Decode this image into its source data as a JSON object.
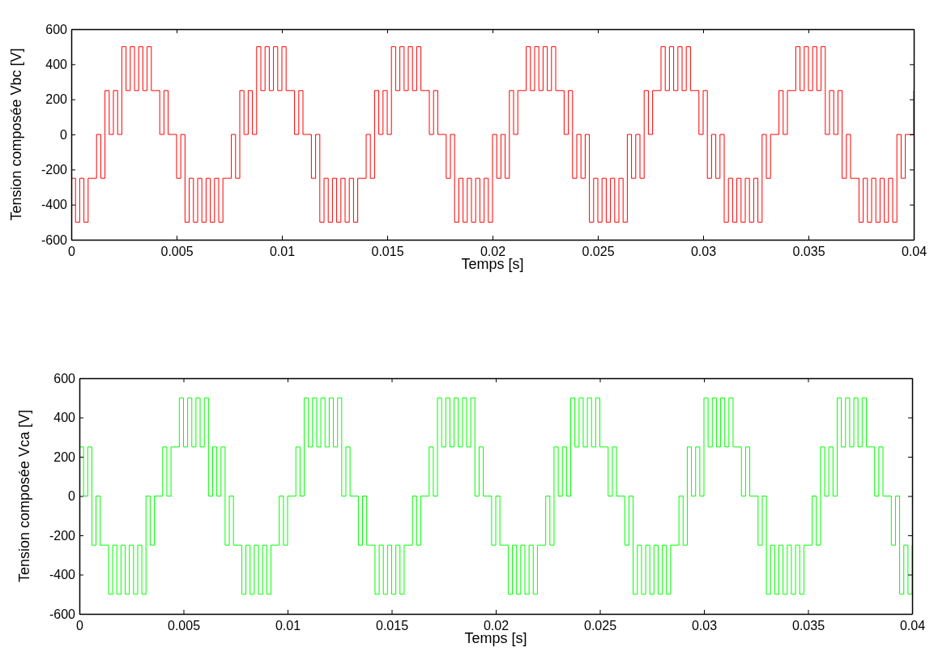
{
  "chart_data": [
    {
      "type": "step",
      "xlabel": "Temps [s]",
      "ylabel": "Tension composée Vbc [V]",
      "xlim": [
        0,
        0.04
      ],
      "xticks": [
        0,
        0.005,
        0.01,
        0.015,
        0.02,
        0.025,
        0.03,
        0.035,
        0.04
      ],
      "ylim": [
        -600,
        600
      ],
      "yticks": [
        -600,
        -400,
        -200,
        0,
        200,
        400,
        600
      ],
      "x": [
        0,
        0.0002,
        0.0004,
        0.0006,
        0.0008,
        0.001,
        0.0012,
        0.0014,
        0.0016,
        0.0018,
        0.002,
        0.0022,
        0.0024,
        0.0026,
        0.0028,
        0.003,
        0.0032,
        0.0034,
        0.0036,
        0.0038,
        0.004,
        0.0042,
        0.0044,
        0.0046,
        0.0048,
        0.005,
        0.0052,
        0.0054,
        0.0056,
        0.0058,
        0.006,
        0.0062,
        0.0064,
        0.0066,
        0.0068,
        0.007,
        0.0072,
        0.0074,
        0.0076,
        0.0078,
        0.008,
        0.0082,
        0.0084,
        0.0086,
        0.0088,
        0.009,
        0.0092,
        0.0094,
        0.0096,
        0.0098,
        0.01,
        0.0102,
        0.0104,
        0.0106,
        0.0108,
        0.011,
        0.0112,
        0.0114,
        0.0116,
        0.0118,
        0.012,
        0.0122,
        0.0124,
        0.0126,
        0.0128,
        0.013,
        0.0132,
        0.0134,
        0.0136,
        0.0138,
        0.014,
        0.0142,
        0.0144,
        0.0146,
        0.0148,
        0.015,
        0.0152,
        0.0154,
        0.0156,
        0.0158,
        0.016,
        0.0162,
        0.0164,
        0.0166,
        0.0168,
        0.017,
        0.0172,
        0.0174,
        0.0176,
        0.0178,
        0.018,
        0.0182,
        0.0184,
        0.0186,
        0.0188,
        0.019,
        0.0192,
        0.0194,
        0.0196,
        0.0198,
        0.02,
        0.0202,
        0.0204,
        0.0206,
        0.0208,
        0.021,
        0.0212,
        0.0214,
        0.0216,
        0.0218,
        0.022,
        0.0222,
        0.0224,
        0.0226,
        0.0228,
        0.023,
        0.0232,
        0.0234,
        0.0236,
        0.0238,
        0.024,
        0.0242,
        0.0244,
        0.0246,
        0.0248,
        0.025,
        0.0252,
        0.0254,
        0.0256,
        0.0258,
        0.026,
        0.0262,
        0.0264,
        0.0266,
        0.0268,
        0.027,
        0.0272,
        0.0274,
        0.0276,
        0.0278,
        0.028,
        0.0282,
        0.0284,
        0.0286,
        0.0288,
        0.029,
        0.0292,
        0.0294,
        0.0296,
        0.0298,
        0.03,
        0.0302,
        0.0304,
        0.0306,
        0.0308,
        0.031,
        0.0312,
        0.0314,
        0.0316,
        0.0318,
        0.032,
        0.0322,
        0.0324,
        0.0326,
        0.0328,
        0.033,
        0.0332,
        0.0334,
        0.0336,
        0.0338,
        0.034,
        0.0342,
        0.0344,
        0.0346,
        0.0348,
        0.035,
        0.0352,
        0.0354,
        0.0356,
        0.0358,
        0.036,
        0.0362,
        0.0364,
        0.0366,
        0.0368,
        0.037,
        0.0372,
        0.0374,
        0.0376,
        0.0378,
        0.038,
        0.0382,
        0.0384,
        0.0386,
        0.0388,
        0.039,
        0.0392,
        0.0394,
        0.0396,
        0.0398,
        0.04
      ],
      "series": [
        {
          "color": "#ff0000",
          "values": [
            -250,
            -500,
            -250,
            -500,
            -250,
            -250,
            0,
            -250,
            250,
            0,
            250,
            0,
            500,
            250,
            500,
            250,
            500,
            250,
            500,
            250,
            250,
            0,
            250,
            0,
            0,
            -250,
            0,
            -500,
            -250,
            -500,
            -250,
            -500,
            -250,
            -500,
            -250,
            -500,
            -250,
            -250,
            0,
            -250,
            250,
            0,
            250,
            0,
            500,
            250,
            500,
            250,
            500,
            250,
            500,
            250,
            250,
            0,
            250,
            0,
            0,
            -250,
            0,
            -500,
            -250,
            -500,
            -250,
            -500,
            -250,
            -500,
            -250,
            -500,
            -250,
            -250,
            0,
            -250,
            250,
            0,
            250,
            0,
            500,
            250,
            500,
            250,
            500,
            250,
            500,
            250,
            250,
            0,
            250,
            0,
            0,
            -250,
            0,
            -500,
            -250,
            -500,
            -250,
            -500,
            -250,
            -500,
            -250,
            -500,
            0,
            -250,
            0,
            -250,
            250,
            0,
            250,
            250,
            500,
            250,
            500,
            250,
            500,
            250,
            500,
            250,
            250,
            0,
            250,
            -250,
            0,
            -250,
            0,
            -500,
            -250,
            -500,
            -250,
            -500,
            -250,
            -500,
            -250,
            -500,
            0,
            -250,
            0,
            -250,
            250,
            0,
            250,
            250,
            500,
            250,
            500,
            250,
            500,
            250,
            500,
            250,
            250,
            0,
            250,
            -250,
            0,
            -250,
            0,
            -500,
            -250,
            -500,
            -250,
            -500,
            -250,
            -500,
            -250,
            -500,
            0,
            -250,
            0,
            0,
            250,
            0,
            250,
            250,
            500,
            250,
            500,
            250,
            500,
            250,
            500,
            0,
            250,
            0,
            250,
            -250,
            0,
            -250,
            -250,
            -500,
            -250,
            -500,
            -250,
            -500,
            -250,
            -500,
            -250,
            -500,
            0,
            -250,
            0,
            0,
            250
          ]
        }
      ]
    },
    {
      "type": "step",
      "xlabel": "Temps [s]",
      "ylabel": "Tension composée Vca [V]",
      "xlim": [
        0,
        0.04
      ],
      "xticks": [
        0,
        0.005,
        0.01,
        0.015,
        0.02,
        0.025,
        0.03,
        0.035,
        0.04
      ],
      "ylim": [
        -600,
        600
      ],
      "yticks": [
        -600,
        -400,
        -200,
        0,
        200,
        400,
        600
      ],
      "x": [
        0,
        0.0002,
        0.0004,
        0.0006,
        0.0008,
        0.001,
        0.0012,
        0.0014,
        0.0016,
        0.0018,
        0.002,
        0.0022,
        0.0024,
        0.0026,
        0.0028,
        0.003,
        0.0032,
        0.0034,
        0.0036,
        0.0038,
        0.004,
        0.0042,
        0.0044,
        0.0046,
        0.0048,
        0.005,
        0.0052,
        0.0054,
        0.0056,
        0.0058,
        0.006,
        0.0062,
        0.0064,
        0.0066,
        0.0068,
        0.007,
        0.0072,
        0.0074,
        0.0076,
        0.0078,
        0.008,
        0.0082,
        0.0084,
        0.0086,
        0.0088,
        0.009,
        0.0092,
        0.0094,
        0.0096,
        0.0098,
        0.01,
        0.0102,
        0.0104,
        0.0106,
        0.0108,
        0.011,
        0.0112,
        0.0114,
        0.0116,
        0.0118,
        0.012,
        0.0122,
        0.0124,
        0.0126,
        0.0128,
        0.013,
        0.0132,
        0.0134,
        0.0136,
        0.0138,
        0.014,
        0.0142,
        0.0144,
        0.0146,
        0.0148,
        0.015,
        0.0152,
        0.0154,
        0.0156,
        0.0158,
        0.016,
        0.0162,
        0.0164,
        0.0166,
        0.0168,
        0.017,
        0.0172,
        0.0174,
        0.0176,
        0.0178,
        0.018,
        0.0182,
        0.0184,
        0.0186,
        0.0188,
        0.019,
        0.0192,
        0.0194,
        0.0196,
        0.0198,
        0.02,
        0.0202,
        0.0204,
        0.0206,
        0.0208,
        0.021,
        0.0212,
        0.0214,
        0.0216,
        0.0218,
        0.022,
        0.0222,
        0.0224,
        0.0226,
        0.0228,
        0.023,
        0.0232,
        0.0234,
        0.0236,
        0.0238,
        0.024,
        0.0242,
        0.0244,
        0.0246,
        0.0248,
        0.025,
        0.0252,
        0.0254,
        0.0256,
        0.0258,
        0.026,
        0.0262,
        0.0264,
        0.0266,
        0.0268,
        0.027,
        0.0272,
        0.0274,
        0.0276,
        0.0278,
        0.028,
        0.0282,
        0.0284,
        0.0286,
        0.0288,
        0.029,
        0.0292,
        0.0294,
        0.0296,
        0.0298,
        0.03,
        0.0302,
        0.0304,
        0.0306,
        0.0308,
        0.031,
        0.0312,
        0.0314,
        0.0316,
        0.0318,
        0.032,
        0.0322,
        0.0324,
        0.0326,
        0.0328,
        0.033,
        0.0332,
        0.0334,
        0.0336,
        0.0338,
        0.034,
        0.0342,
        0.0344,
        0.0346,
        0.0348,
        0.035,
        0.0352,
        0.0354,
        0.0356,
        0.0358,
        0.036,
        0.0362,
        0.0364,
        0.0366,
        0.0368,
        0.037,
        0.0372,
        0.0374,
        0.0376,
        0.0378,
        0.038,
        0.0382,
        0.0384,
        0.0386,
        0.0388,
        0.039,
        0.0392,
        0.0394,
        0.0396,
        0.0398,
        0.04
      ],
      "series": [
        {
          "color": "#00ff00",
          "values": [
            250,
            0,
            250,
            -250,
            0,
            -250,
            -250,
            -500,
            -250,
            -500,
            -250,
            -500,
            -250,
            -500,
            -250,
            -500,
            0,
            -250,
            0,
            0,
            250,
            0,
            250,
            250,
            500,
            250,
            500,
            250,
            500,
            250,
            500,
            0,
            250,
            0,
            250,
            -250,
            0,
            -250,
            -250,
            -500,
            -250,
            -500,
            -250,
            -500,
            -250,
            -500,
            -250,
            -250,
            0,
            -250,
            0,
            0,
            250,
            0,
            500,
            250,
            500,
            250,
            500,
            250,
            500,
            250,
            500,
            0,
            250,
            0,
            0,
            -250,
            0,
            -250,
            -250,
            -500,
            -250,
            -500,
            -250,
            -500,
            -250,
            -500,
            -250,
            -250,
            0,
            -250,
            0,
            0,
            250,
            0,
            500,
            250,
            500,
            250,
            500,
            250,
            500,
            250,
            500,
            0,
            250,
            0,
            0,
            -250,
            0,
            -250,
            -250,
            -500,
            -250,
            -500,
            -250,
            -500,
            -250,
            -500,
            -250,
            -250,
            0,
            -250,
            250,
            0,
            250,
            0,
            500,
            250,
            500,
            250,
            500,
            250,
            500,
            250,
            250,
            0,
            250,
            0,
            0,
            -250,
            0,
            -500,
            -250,
            -500,
            -250,
            -500,
            -250,
            -500,
            -250,
            -500,
            -250,
            -250,
            0,
            -250,
            250,
            0,
            250,
            0,
            500,
            250,
            500,
            250,
            500,
            250,
            500,
            250,
            250,
            0,
            250,
            0,
            0,
            -250,
            0,
            -500,
            -250,
            -500,
            -250,
            -500,
            -250,
            -500,
            -250,
            -500,
            -250,
            -250,
            0,
            -250,
            250,
            0,
            250,
            0,
            500,
            250,
            500,
            250,
            500,
            250,
            500,
            250,
            250,
            0,
            250,
            0,
            0,
            -250,
            0,
            -500,
            -250,
            -500,
            -250
          ]
        }
      ]
    }
  ]
}
